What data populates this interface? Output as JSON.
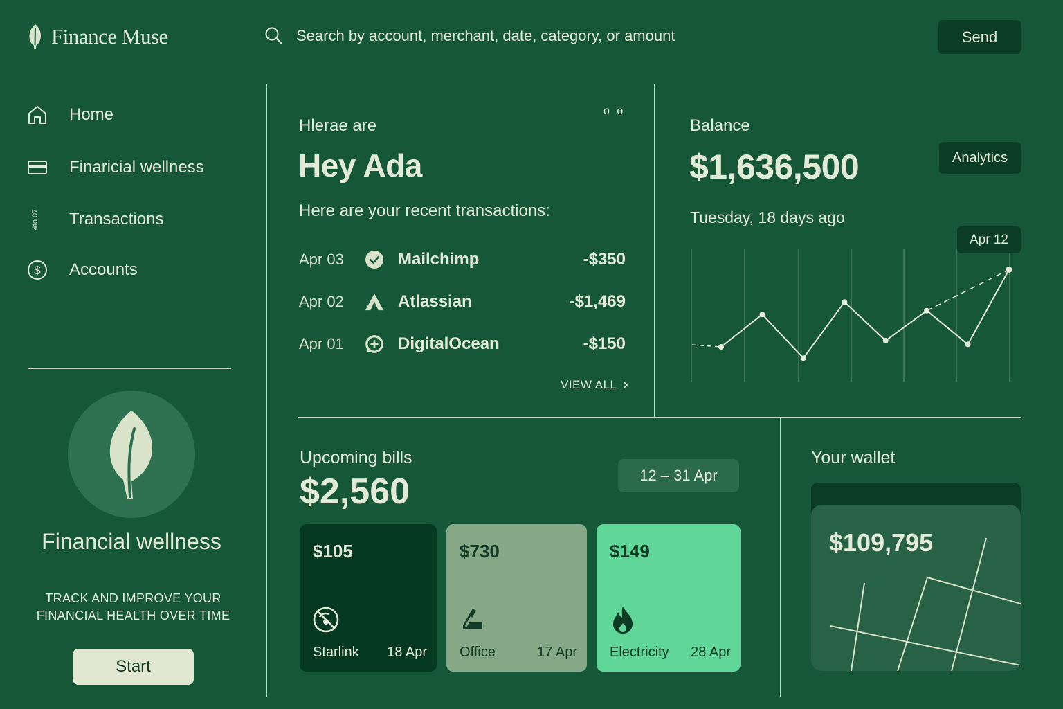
{
  "app": {
    "name": "Finance Muse"
  },
  "search": {
    "placeholder": "Search by account, merchant, date, category, or amount"
  },
  "header": {
    "send_label": "Send"
  },
  "sidebar": {
    "items": [
      {
        "label": "Home",
        "icon": "home-icon"
      },
      {
        "label": "Finaricial wellness",
        "icon": "card-icon"
      },
      {
        "label": "Transactions",
        "icon": "transactions-icon",
        "icon_glyph": "4to\n07"
      },
      {
        "label": "Accounts",
        "icon": "dollar-circle-icon"
      }
    ],
    "promo": {
      "title": "Financial wellness",
      "subtitle": "TRACK AND IMPROVE YOUR FINANCIAL HEALTH OVER TIME",
      "button": "Start"
    }
  },
  "greeting": {
    "dots": "o o",
    "overline": "Hlerae are",
    "title": "Hey Ada",
    "subtitle": "Here are your recent transactions:",
    "transactions": [
      {
        "date": "Apr 03",
        "merchant": "Mailchimp",
        "amount": "-$350",
        "icon": "check-circle-icon"
      },
      {
        "date": "Apr 02",
        "merchant": "Atlassian",
        "amount": "-$1,469",
        "icon": "atlassian-icon"
      },
      {
        "date": "Apr 01",
        "merchant": "DigitalOcean",
        "amount": "-$150",
        "icon": "digitalocean-icon"
      }
    ],
    "view_all": "VIEW ALL"
  },
  "balance": {
    "label": "Balance",
    "amount": "$1,636,500",
    "analytics_label": "Analytics",
    "date_text": "Tuesday, 18 days ago",
    "tooltip": "Apr 12"
  },
  "chart_data": {
    "type": "line",
    "series": [
      {
        "values": [
          3,
          5.6,
          2.1,
          6.6,
          3.5,
          5.9,
          3.2,
          9.2
        ]
      }
    ],
    "highlighted_point": "Apr 12",
    "grid": "vertical",
    "title": "",
    "xlabel": "",
    "ylabel": ""
  },
  "bills": {
    "label": "Upcoming bills",
    "total": "$2,560",
    "range": "12 – 31 Apr",
    "items": [
      {
        "amount": "$105",
        "name": "Starlink",
        "date": "18 Apr",
        "icon": "starlink-icon",
        "bg": "#043820",
        "fg": "#e4ead8"
      },
      {
        "amount": "$730",
        "name": "Office",
        "date": "17 Apr",
        "icon": "office-icon",
        "bg": "#86a887",
        "fg": "#123a25"
      },
      {
        "amount": "$149",
        "name": "Electricity",
        "date": "28 Apr",
        "icon": "flame-icon",
        "bg": "#60d698",
        "fg": "#0c3a22"
      }
    ]
  },
  "wallet": {
    "label": "Your wallet",
    "amount": "$109,795"
  },
  "colors": {
    "background": "#155737",
    "dark_panel": "#0b3d24",
    "text": "#e4ead8",
    "accent_green": "#60d698"
  }
}
